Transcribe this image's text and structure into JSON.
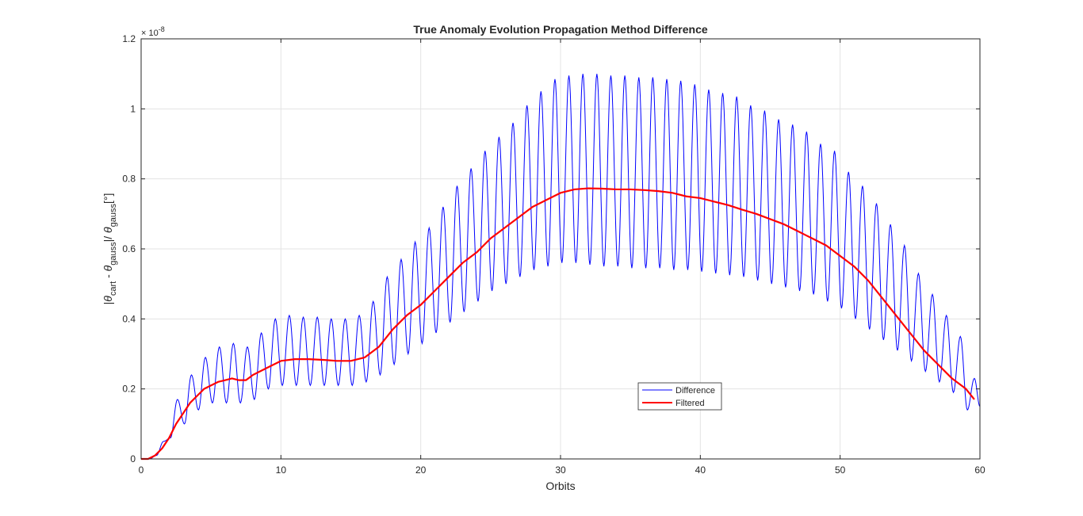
{
  "chart_data": {
    "type": "line",
    "title": "True Anomaly Evolution Propagation Method Difference",
    "xlabel": "Orbits",
    "ylabel": {
      "open": "|",
      "theta": "θ",
      "sub_cart": "cart",
      "minus": " - ",
      "sub_gauss": "gauss",
      "mid": "|/ ",
      "tail": "[°]"
    },
    "y_exponent": {
      "base": "× 10",
      "power": "-8"
    },
    "xlim": [
      0,
      60
    ],
    "ylim": [
      0,
      1.2
    ],
    "x_ticks": [
      0,
      10,
      20,
      30,
      40,
      50,
      60
    ],
    "x_tick_labels": [
      "0",
      "10",
      "20",
      "30",
      "40",
      "50",
      "60"
    ],
    "y_ticks": [
      0,
      0.2,
      0.4,
      0.6,
      0.8,
      1.0,
      1.2
    ],
    "y_tick_labels": [
      "0",
      "0.2",
      "0.4",
      "0.6",
      "0.8",
      "1",
      "1.2"
    ],
    "grid": true,
    "legend_position": "bottom-center-right",
    "series": [
      {
        "name": "Difference",
        "color": "#0000ff",
        "style": "oscillating",
        "period": 1.0,
        "phase": 0.6,
        "peaks": [
          [
            0.6,
            0.0
          ],
          [
            1.6,
            0.05
          ],
          [
            2.6,
            0.17
          ],
          [
            3.6,
            0.24
          ],
          [
            4.6,
            0.29
          ],
          [
            5.6,
            0.32
          ],
          [
            6.6,
            0.33
          ],
          [
            7.6,
            0.32
          ],
          [
            8.6,
            0.36
          ],
          [
            9.6,
            0.4
          ],
          [
            10.6,
            0.41
          ],
          [
            11.6,
            0.405
          ],
          [
            12.6,
            0.405
          ],
          [
            13.6,
            0.4
          ],
          [
            14.6,
            0.4
          ],
          [
            15.6,
            0.41
          ],
          [
            16.6,
            0.45
          ],
          [
            17.6,
            0.52
          ],
          [
            18.6,
            0.57
          ],
          [
            19.6,
            0.62
          ],
          [
            20.6,
            0.66
          ],
          [
            21.6,
            0.72
          ],
          [
            22.6,
            0.78
          ],
          [
            23.6,
            0.83
          ],
          [
            24.6,
            0.88
          ],
          [
            25.6,
            0.92
          ],
          [
            26.6,
            0.96
          ],
          [
            27.6,
            1.01
          ],
          [
            28.6,
            1.05
          ],
          [
            29.6,
            1.085
          ],
          [
            30.6,
            1.095
          ],
          [
            31.6,
            1.1
          ],
          [
            32.6,
            1.1
          ],
          [
            33.6,
            1.095
          ],
          [
            34.6,
            1.095
          ],
          [
            35.6,
            1.09
          ],
          [
            36.6,
            1.09
          ],
          [
            37.6,
            1.085
          ],
          [
            38.6,
            1.08
          ],
          [
            39.6,
            1.07
          ],
          [
            40.6,
            1.055
          ],
          [
            41.6,
            1.045
          ],
          [
            42.6,
            1.035
          ],
          [
            43.6,
            1.01
          ],
          [
            44.6,
            0.995
          ],
          [
            45.6,
            0.97
          ],
          [
            46.6,
            0.955
          ],
          [
            47.6,
            0.935
          ],
          [
            48.6,
            0.9
          ],
          [
            49.6,
            0.88
          ],
          [
            50.6,
            0.82
          ],
          [
            51.6,
            0.78
          ],
          [
            52.6,
            0.73
          ],
          [
            53.6,
            0.67
          ],
          [
            54.6,
            0.61
          ],
          [
            55.6,
            0.53
          ],
          [
            56.6,
            0.47
          ],
          [
            57.6,
            0.41
          ],
          [
            58.6,
            0.35
          ],
          [
            59.6,
            0.23
          ]
        ],
        "troughs": [
          [
            0.1,
            0.0
          ],
          [
            1.1,
            0.01
          ],
          [
            2.1,
            0.06
          ],
          [
            3.1,
            0.1
          ],
          [
            4.1,
            0.14
          ],
          [
            5.1,
            0.16
          ],
          [
            6.1,
            0.16
          ],
          [
            7.1,
            0.16
          ],
          [
            8.1,
            0.17
          ],
          [
            9.1,
            0.2
          ],
          [
            10.1,
            0.21
          ],
          [
            11.1,
            0.21
          ],
          [
            12.1,
            0.21
          ],
          [
            13.1,
            0.21
          ],
          [
            14.1,
            0.21
          ],
          [
            15.1,
            0.21
          ],
          [
            16.1,
            0.22
          ],
          [
            17.1,
            0.24
          ],
          [
            18.1,
            0.27
          ],
          [
            19.1,
            0.3
          ],
          [
            20.1,
            0.33
          ],
          [
            21.1,
            0.36
          ],
          [
            22.1,
            0.39
          ],
          [
            23.1,
            0.42
          ],
          [
            24.1,
            0.45
          ],
          [
            25.1,
            0.48
          ],
          [
            26.1,
            0.5
          ],
          [
            27.1,
            0.52
          ],
          [
            28.1,
            0.54
          ],
          [
            29.1,
            0.55
          ],
          [
            30.1,
            0.56
          ],
          [
            31.1,
            0.56
          ],
          [
            32.1,
            0.555
          ],
          [
            33.1,
            0.55
          ],
          [
            34.1,
            0.55
          ],
          [
            35.1,
            0.545
          ],
          [
            36.1,
            0.545
          ],
          [
            37.1,
            0.545
          ],
          [
            38.1,
            0.54
          ],
          [
            39.1,
            0.54
          ],
          [
            40.1,
            0.535
          ],
          [
            41.1,
            0.53
          ],
          [
            42.1,
            0.525
          ],
          [
            43.1,
            0.52
          ],
          [
            44.1,
            0.51
          ],
          [
            45.1,
            0.5
          ],
          [
            46.1,
            0.49
          ],
          [
            47.1,
            0.48
          ],
          [
            48.1,
            0.47
          ],
          [
            49.1,
            0.45
          ],
          [
            50.1,
            0.43
          ],
          [
            51.1,
            0.4
          ],
          [
            52.1,
            0.37
          ],
          [
            53.1,
            0.34
          ],
          [
            54.1,
            0.31
          ],
          [
            55.1,
            0.28
          ],
          [
            56.1,
            0.25
          ],
          [
            57.1,
            0.22
          ],
          [
            58.1,
            0.19
          ],
          [
            59.1,
            0.14
          ],
          [
            60.0,
            0.15
          ]
        ]
      },
      {
        "name": "Filtered",
        "color": "#ff0000",
        "x": [
          0,
          0.5,
          1,
          1.5,
          2,
          2.5,
          3,
          3.5,
          4,
          4.5,
          5,
          5.5,
          6,
          6.5,
          7,
          7.5,
          8,
          9,
          10,
          11,
          12,
          13,
          14,
          15,
          16,
          17,
          18,
          19,
          20,
          21,
          22,
          23,
          24,
          25,
          26,
          27,
          28,
          29,
          30,
          31,
          32,
          33,
          34,
          35,
          36,
          37,
          38,
          39,
          40,
          41,
          42,
          43,
          44,
          45,
          46,
          47,
          48,
          49,
          50,
          51,
          52,
          53,
          54,
          55,
          56,
          57,
          58,
          59,
          59.6
        ],
        "y": [
          0,
          0.0,
          0.01,
          0.03,
          0.06,
          0.1,
          0.13,
          0.16,
          0.18,
          0.2,
          0.21,
          0.22,
          0.225,
          0.23,
          0.225,
          0.225,
          0.24,
          0.26,
          0.28,
          0.285,
          0.285,
          0.283,
          0.28,
          0.28,
          0.29,
          0.32,
          0.37,
          0.41,
          0.44,
          0.48,
          0.52,
          0.56,
          0.59,
          0.63,
          0.66,
          0.69,
          0.72,
          0.74,
          0.76,
          0.77,
          0.773,
          0.772,
          0.77,
          0.77,
          0.768,
          0.765,
          0.76,
          0.75,
          0.745,
          0.735,
          0.725,
          0.712,
          0.7,
          0.685,
          0.67,
          0.65,
          0.63,
          0.61,
          0.58,
          0.55,
          0.51,
          0.46,
          0.41,
          0.36,
          0.31,
          0.27,
          0.23,
          0.2,
          0.17
        ]
      }
    ]
  }
}
